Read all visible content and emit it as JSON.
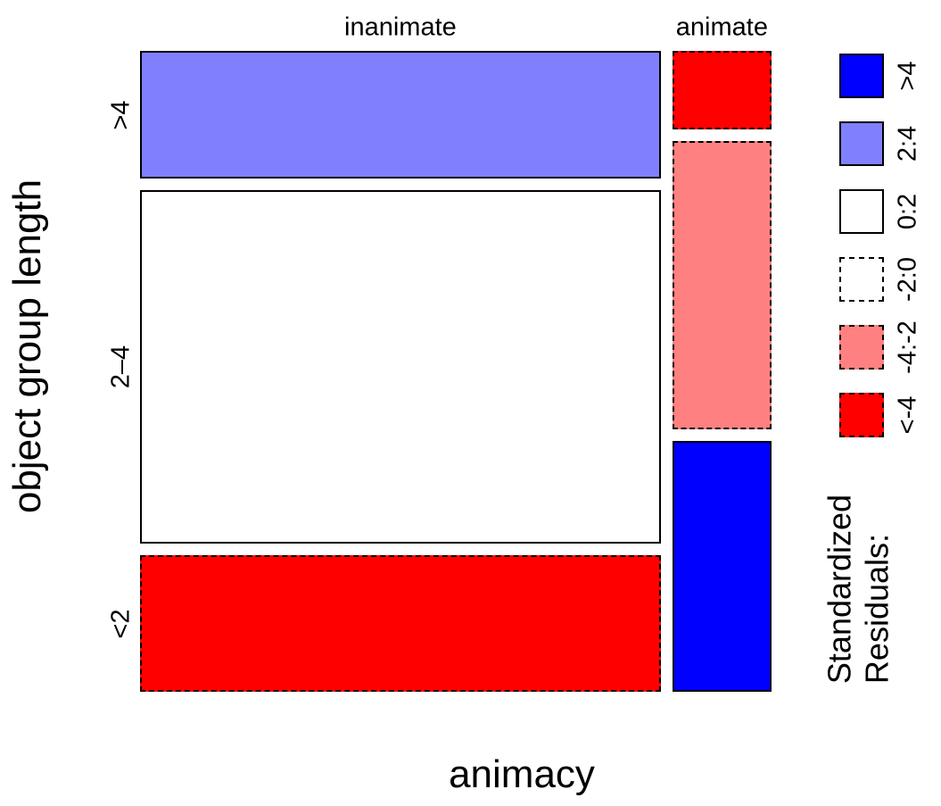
{
  "figure": {
    "background": "#ffffff"
  },
  "legend": {
    "title_lines": [
      "Standardized",
      "Residuals:"
    ],
    "items": [
      {
        "label": ">4",
        "fill": "#0000FF",
        "border_style": "solid"
      },
      {
        "label": "2:4",
        "fill": "#8080FF",
        "border_style": "solid"
      },
      {
        "label": "0:2",
        "fill": "#FFFFFF",
        "border_style": "solid"
      },
      {
        "label": "-2:0",
        "fill": "#FFFFFF",
        "border_style": "dashed"
      },
      {
        "label": "-4:-2",
        "fill": "#FF8080",
        "border_style": "dashed"
      },
      {
        "label": "<-4",
        "fill": "#FF0000",
        "border_style": "dashed"
      }
    ]
  },
  "chart_data": {
    "type": "mosaic",
    "x_variable": "animacy",
    "y_variable": "object group length",
    "column_labels": [
      "inanimate",
      "animate"
    ],
    "row_labels": [
      ">4",
      "2–4",
      "<2"
    ],
    "residual_color_scale": {
      ">4": "#0000FF",
      "2:4": "#8080FF",
      "0:2": "#FFFFFF",
      "-2:0": "#FFFFFF",
      "-4:-2": "#FF8080",
      "<-4": "#FF0000"
    },
    "columns": [
      {
        "name": "inanimate",
        "width_proportion": 0.84,
        "cells": [
          {
            "row": ">4",
            "height_proportion": 0.207,
            "residual_bin": "2:4",
            "fill": "#8080FF",
            "border_style": "solid"
          },
          {
            "row": "2–4",
            "height_proportion": 0.572,
            "residual_bin": "0:2",
            "fill": "#FFFFFF",
            "border_style": "solid"
          },
          {
            "row": "<2",
            "height_proportion": 0.221,
            "residual_bin": "<-4",
            "fill": "#FF0000",
            "border_style": "dashed"
          }
        ]
      },
      {
        "name": "animate",
        "width_proportion": 0.16,
        "cells": [
          {
            "row": ">4",
            "height_proportion": 0.127,
            "residual_bin": "<-4",
            "fill": "#FF0000",
            "border_style": "dashed"
          },
          {
            "row": "2–4",
            "height_proportion": 0.467,
            "residual_bin": "-4:-2",
            "fill": "#FF8080",
            "border_style": "dashed"
          },
          {
            "row": "<2",
            "height_proportion": 0.406,
            "residual_bin": ">4",
            "fill": "#0000FF",
            "border_style": "solid"
          }
        ]
      }
    ]
  }
}
